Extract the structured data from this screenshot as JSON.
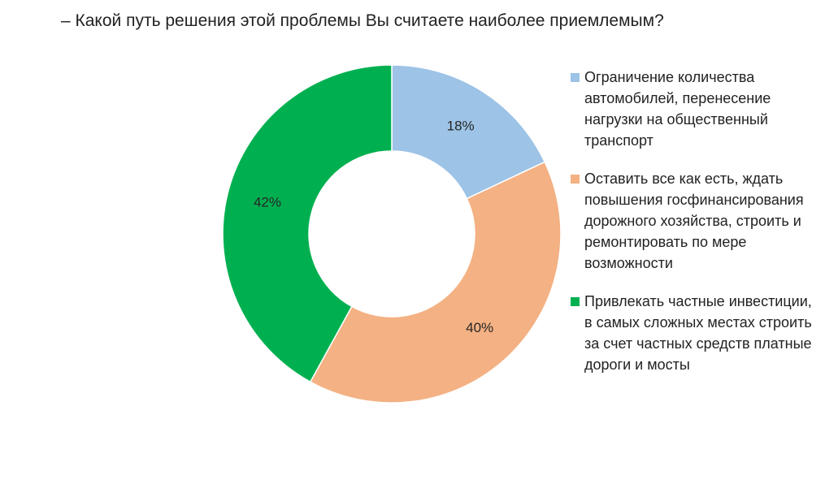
{
  "chart_data": {
    "type": "pie",
    "donut": true,
    "title": "– Какой путь решения этой проблемы Вы считаете наиболее приемлемым?",
    "legend_position": "right",
    "slices": [
      {
        "label": "Ограничение количества автомобилей, перенесение нагрузки на общественный транспорт",
        "value": 18,
        "value_label": "18%",
        "color": "#9DC3E6"
      },
      {
        "label": "Оставить все как есть, ждать повышения госфинансирования дорожного хозяйства, строить и ремонтировать по мере возможности",
        "value": 40,
        "value_label": "40%",
        "color": "#F4B183"
      },
      {
        "label": "Привлекать частные инвестиции, в самых сложных местах строить за счет частных средств платные дороги и мосты",
        "value": 42,
        "value_label": "42%",
        "color": "#00B050"
      }
    ]
  }
}
